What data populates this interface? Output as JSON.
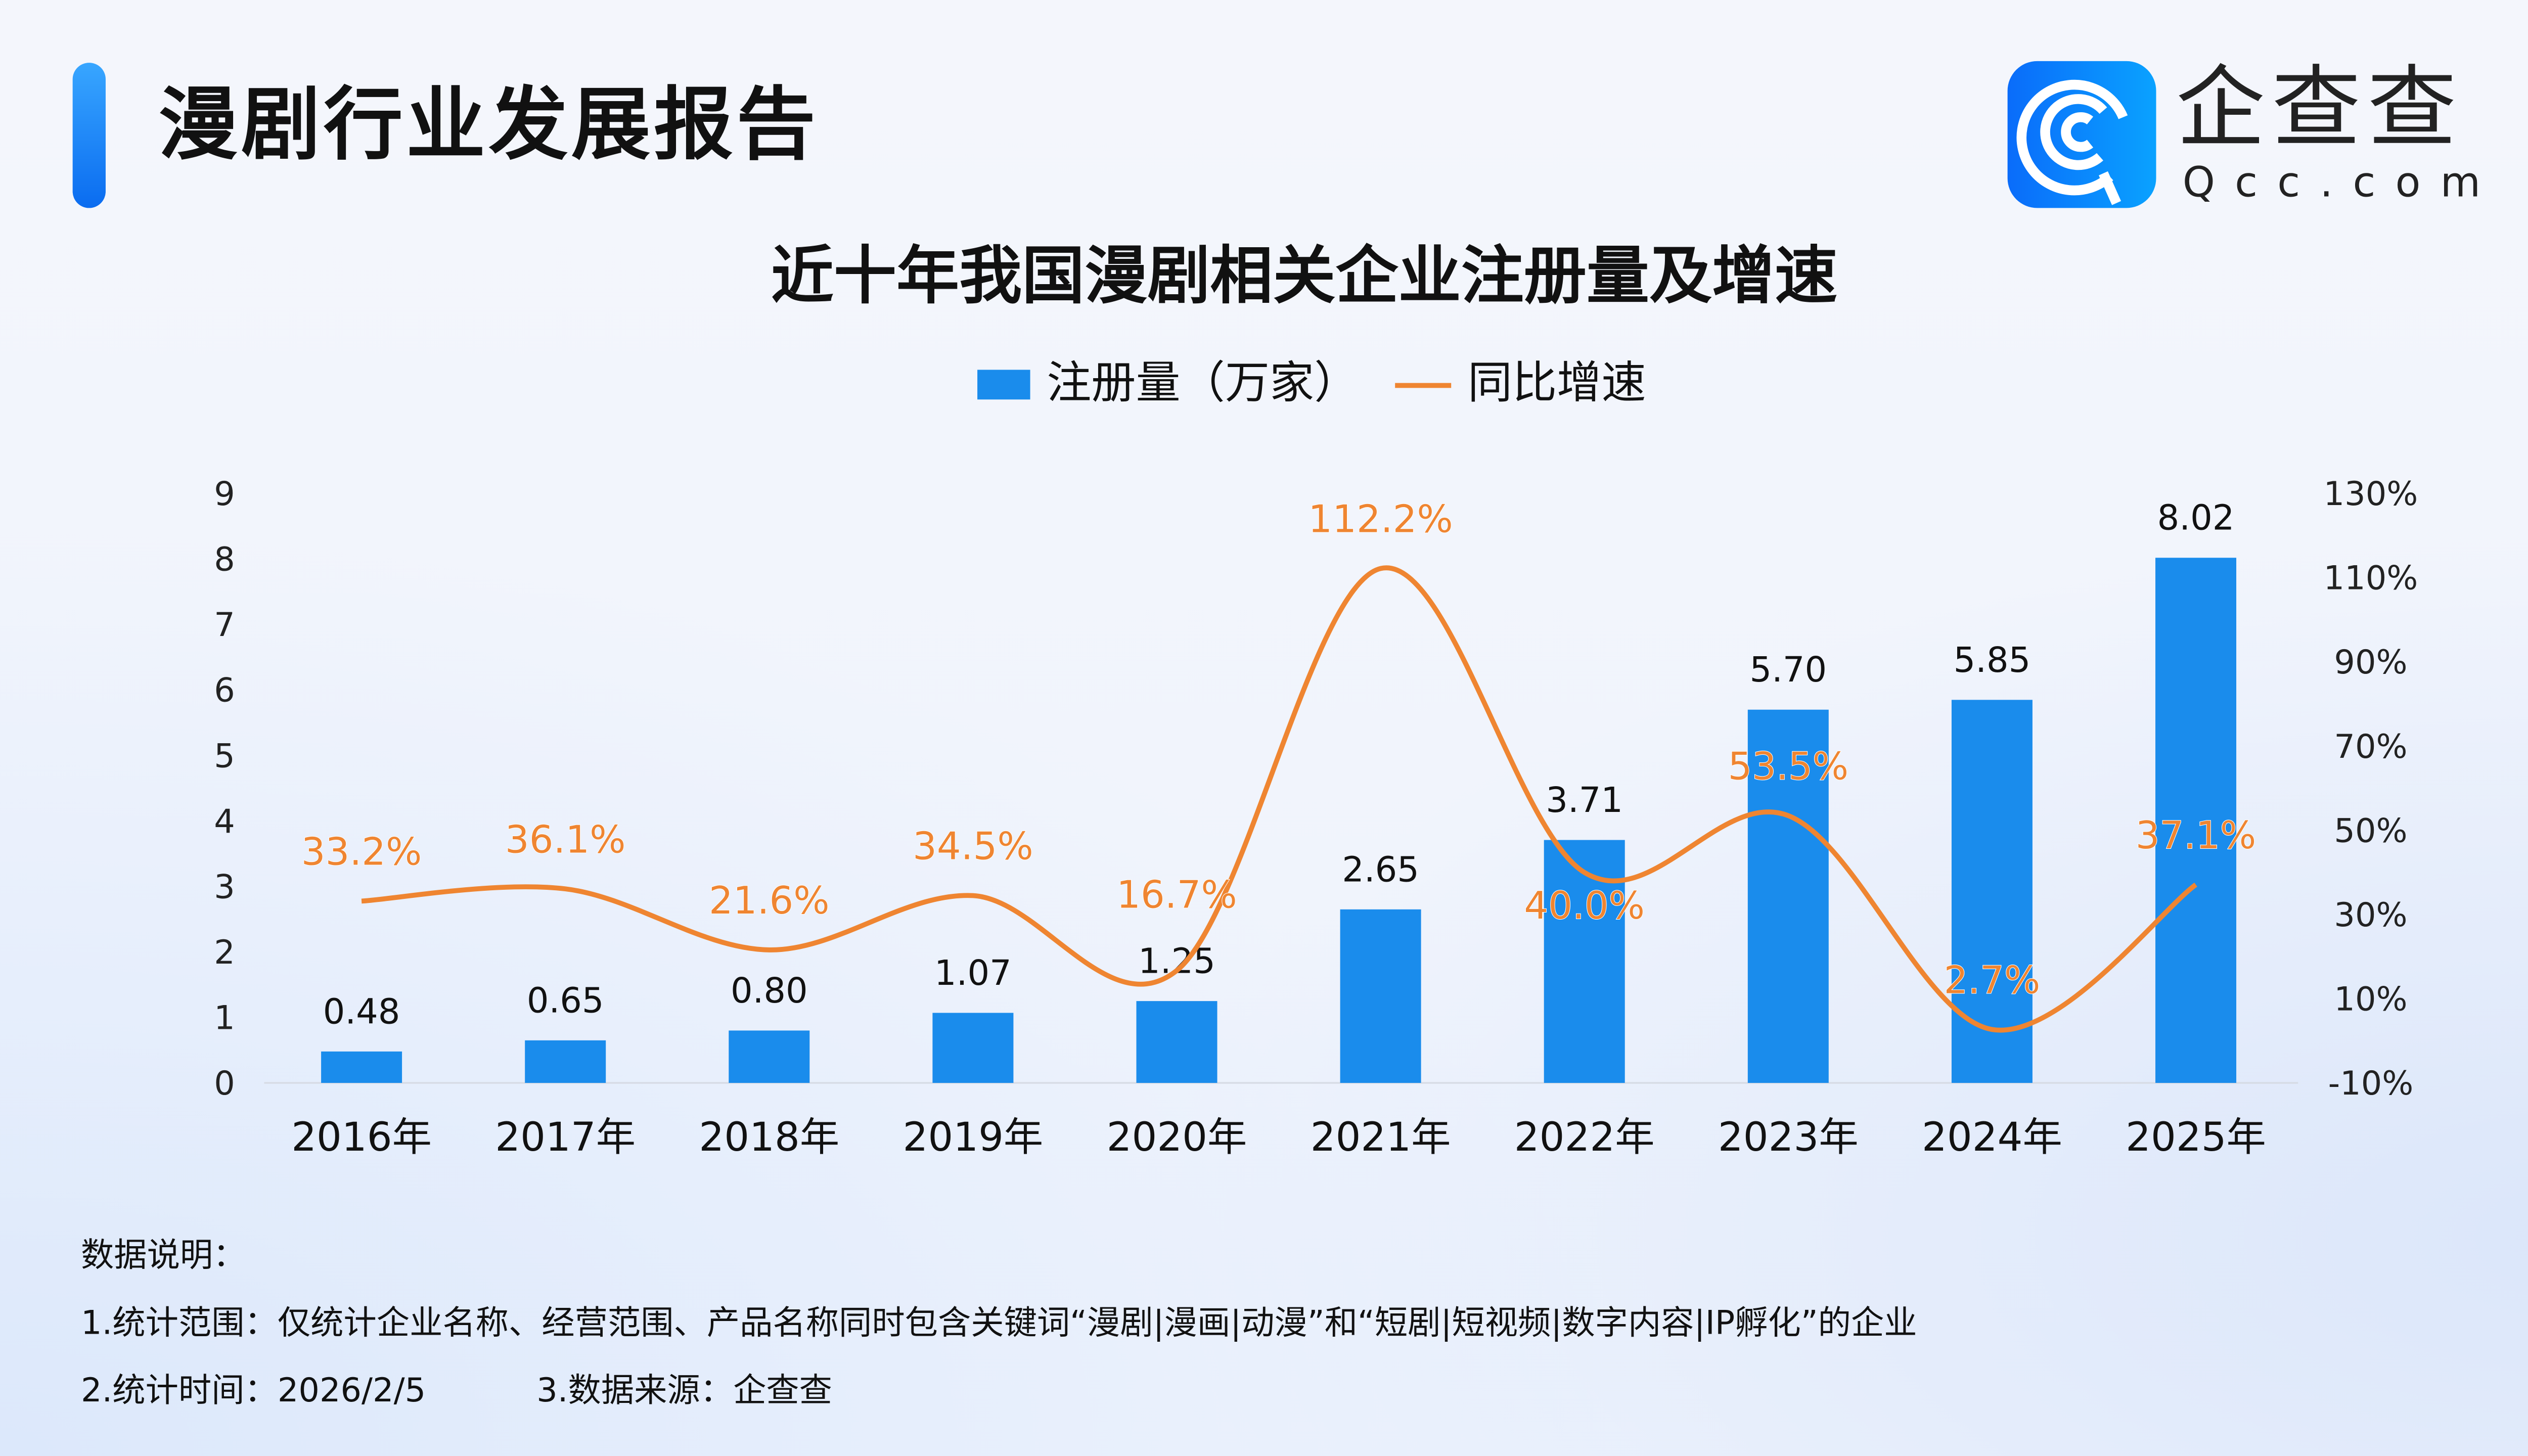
{
  "header": {
    "title": "漫剧行业发展报告"
  },
  "logo": {
    "cn": "企查查",
    "en": "Qcc.com"
  },
  "colors": {
    "bar": "#1a8cec",
    "line": "#ef8531",
    "accent": "#1677ff"
  },
  "chart_data": {
    "type": "bar+line",
    "title": "近十年我国漫剧相关企业注册量及增速",
    "categories": [
      "2016年",
      "2017年",
      "2018年",
      "2019年",
      "2020年",
      "2021年",
      "2022年",
      "2023年",
      "2024年",
      "2025年"
    ],
    "series": [
      {
        "name": "注册量（万家）",
        "type": "bar",
        "axis": "left",
        "values": [
          0.48,
          0.65,
          0.8,
          1.07,
          1.25,
          2.65,
          3.71,
          5.7,
          5.85,
          8.02
        ],
        "labels": [
          "0.48",
          "0.65",
          "0.80",
          "1.07",
          "1.25",
          "2.65",
          "3.71",
          "5.70",
          "5.85",
          "8.02"
        ]
      },
      {
        "name": "同比增速",
        "type": "line",
        "axis": "right",
        "values": [
          33.2,
          36.1,
          21.6,
          34.5,
          16.7,
          112.2,
          40.0,
          53.5,
          2.7,
          37.1
        ],
        "labels": [
          "33.2%",
          "36.1%",
          "21.6%",
          "34.5%",
          "16.7%",
          "112.2%",
          "40.0%",
          "53.5%",
          "2.7%",
          "37.1%"
        ]
      }
    ],
    "y_left": {
      "range": [
        0,
        9
      ],
      "ticks": [
        "0",
        "1",
        "2",
        "3",
        "4",
        "5",
        "6",
        "7",
        "8",
        "9"
      ]
    },
    "y_right": {
      "range": [
        -10,
        130
      ],
      "ticks": [
        "-10%",
        "10%",
        "30%",
        "50%",
        "70%",
        "90%",
        "110%",
        "130%"
      ]
    },
    "legend": "top-center",
    "grid": false
  },
  "notes": {
    "heading": "数据说明：",
    "line1": "1.统计范围：仅统计企业名称、经营范围、产品名称同时包含关键词“漫剧|漫画|动漫”和“短剧|短视频|数字内容|IP孵化”的企业",
    "line2": "2.统计时间：2026/2/5",
    "line3": "3.数据来源：企查查"
  }
}
